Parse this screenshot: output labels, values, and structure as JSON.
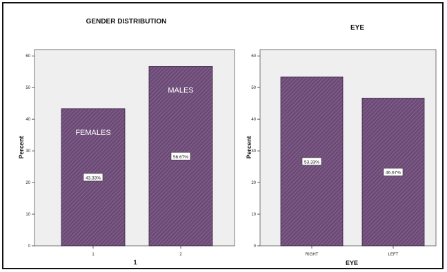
{
  "chart_data": [
    {
      "type": "bar",
      "title": "GENDER DISTRIBUTION",
      "xlabel": "1",
      "ylabel": "Percent",
      "categories": [
        "1",
        "2"
      ],
      "values": [
        43.33,
        56.67
      ],
      "bar_labels": [
        "FEMALES",
        "MALES"
      ],
      "data_labels": [
        "43.33%",
        "56.67%"
      ],
      "ylim": [
        0,
        62
      ],
      "yticks": [
        0,
        10,
        20,
        30,
        40,
        50,
        60
      ],
      "grid": false,
      "colors": {
        "bar": "#6b4a75",
        "bar_hatch": "#8f6d99",
        "plot_bg": "#efefef"
      }
    },
    {
      "type": "bar",
      "title": "EYE",
      "xlabel": "EYE",
      "ylabel": "Percent",
      "categories": [
        "RIGHT",
        "LEFT"
      ],
      "values": [
        53.33,
        46.67
      ],
      "data_labels": [
        "53.33%",
        "46.67%"
      ],
      "ylim": [
        0,
        62
      ],
      "yticks": [
        0,
        10,
        20,
        30,
        40,
        50,
        60
      ],
      "grid": false,
      "colors": {
        "bar": "#6b4a75",
        "bar_hatch": "#8f6d99",
        "plot_bg": "#efefef"
      }
    }
  ]
}
